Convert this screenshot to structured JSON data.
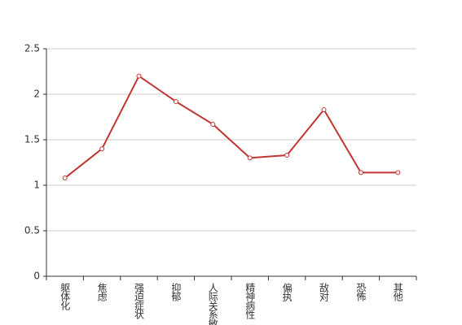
{
  "chart_data": {
    "type": "line",
    "categories": [
      "躯体化",
      "焦虑",
      "强迫症状",
      "抑郁",
      "人际关系敏感",
      "精神病性",
      "偏执",
      "敌对",
      "恐怖",
      "其他"
    ],
    "values": [
      1.08,
      1.4,
      2.2,
      1.92,
      1.67,
      1.3,
      1.33,
      1.83,
      1.14,
      1.14
    ],
    "color": "#c23531",
    "ylim": [
      0,
      2.5
    ],
    "yticks": [
      0,
      0.5,
      1,
      1.5,
      2,
      2.5
    ],
    "grid": true
  }
}
